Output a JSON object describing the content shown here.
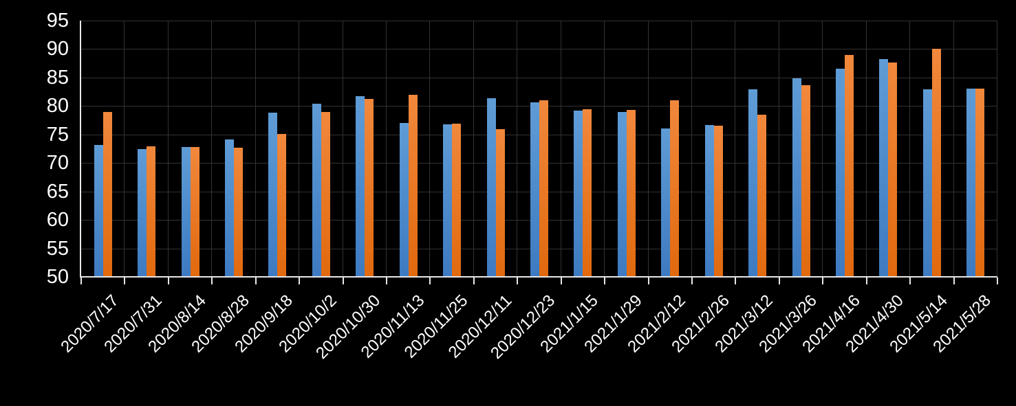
{
  "chart_data": {
    "type": "bar",
    "title": "",
    "xlabel": "",
    "ylabel": "",
    "categories": [
      "2020/7/17",
      "2020/7/31",
      "2020/8/14",
      "2020/8/28",
      "2020/9/18",
      "2020/10/2",
      "2020/10/30",
      "2020/11/13",
      "2020/11/25",
      "2020/12/11",
      "2020/12/23",
      "2021/1/15",
      "2021/1/29",
      "2021/2/12",
      "2021/2/26",
      "2021/3/12",
      "2021/3/26",
      "2021/4/16",
      "2021/4/30",
      "2021/5/14",
      "2021/5/28"
    ],
    "series": [
      {
        "name": "blue-series",
        "color_top": "#5f9cd6",
        "color_bottom": "#3d7ac1",
        "values": [
          73.2,
          72.4,
          72.8,
          74.1,
          78.8,
          80.4,
          81.7,
          77.0,
          76.8,
          81.4,
          80.6,
          79.2,
          78.9,
          76.1,
          76.7,
          82.9,
          84.9,
          86.5,
          88.3,
          82.9,
          83.0
        ]
      },
      {
        "name": "orange-series",
        "color_top": "#f1883c",
        "color_bottom": "#e1690e",
        "values": [
          79.0,
          72.9,
          72.8,
          72.7,
          75.1,
          78.9,
          81.2,
          82.0,
          76.9,
          75.9,
          81.0,
          79.4,
          79.3,
          81.0,
          76.5,
          78.5,
          83.6,
          89.0,
          87.6,
          90.0,
          83.0
        ]
      }
    ],
    "ylim": [
      50,
      95
    ],
    "ytick_step": 5,
    "ytick_labels": [
      "50",
      "55",
      "60",
      "65",
      "70",
      "75",
      "80",
      "85",
      "90",
      "95"
    ],
    "grid": "on",
    "legend_position": "none",
    "background_color": "#000000",
    "axis_color": "#e8e8e8",
    "gridline_color": "#333333",
    "label_color": "#ffffff",
    "x_label_rotation_deg": -45
  }
}
